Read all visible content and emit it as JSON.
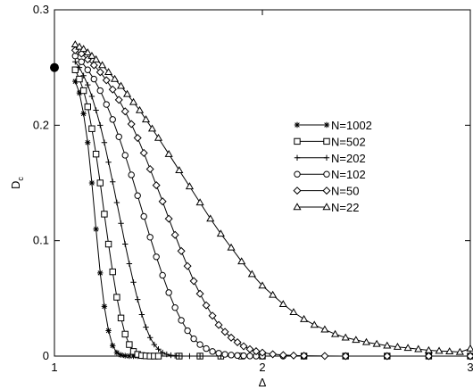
{
  "chart_data": {
    "type": "line",
    "xlabel": "Δ",
    "ylabel": "D",
    "ylabel_sub": "c",
    "xlim": [
      1,
      3
    ],
    "ylim": [
      0,
      0.3
    ],
    "x_ticks": [
      1,
      2,
      3
    ],
    "x_tick_labels": [
      "1",
      "2",
      "3"
    ],
    "y_ticks": [
      0,
      0.1,
      0.2,
      0.3
    ],
    "y_tick_labels": [
      "0",
      "0.1",
      "0.2",
      "0.3"
    ],
    "grid": false,
    "legend_position": "right-center",
    "line_color": "#000000",
    "point_marker": {
      "x": 1.0,
      "y": 0.25,
      "style": "filled-circle"
    },
    "series": [
      {
        "name": "N=1002",
        "marker": "asterisk",
        "x": [
          1.1,
          1.12,
          1.14,
          1.16,
          1.18,
          1.2,
          1.22,
          1.24,
          1.26,
          1.28,
          1.3,
          1.32,
          1.34,
          1.36,
          1.38,
          1.4,
          1.42,
          1.44,
          1.5,
          1.6,
          1.7,
          1.8,
          1.9,
          2.0,
          2.2,
          2.4,
          2.6,
          2.8,
          3.0
        ],
        "y": [
          0.238,
          0.228,
          0.21,
          0.185,
          0.15,
          0.11,
          0.072,
          0.043,
          0.022,
          0.009,
          0.003,
          0.001,
          0.0003,
          0,
          0,
          0,
          0,
          0,
          0,
          0,
          0,
          0,
          0,
          0,
          0,
          0,
          0,
          0,
          0
        ]
      },
      {
        "name": "N=502",
        "marker": "square",
        "x": [
          1.1,
          1.12,
          1.14,
          1.16,
          1.18,
          1.2,
          1.22,
          1.24,
          1.26,
          1.28,
          1.3,
          1.32,
          1.34,
          1.36,
          1.38,
          1.4,
          1.42,
          1.44,
          1.46,
          1.48,
          1.5,
          1.6,
          1.7,
          1.8,
          1.9,
          2.0,
          2.2,
          2.4,
          2.6,
          2.8,
          3.0
        ],
        "y": [
          0.248,
          0.24,
          0.23,
          0.216,
          0.197,
          0.175,
          0.15,
          0.123,
          0.097,
          0.073,
          0.051,
          0.033,
          0.019,
          0.01,
          0.004,
          0.0015,
          0.0005,
          0.0002,
          0,
          0,
          0,
          0,
          0,
          0,
          0,
          0,
          0,
          0,
          0,
          0,
          0
        ]
      },
      {
        "name": "N=202",
        "marker": "plus",
        "x": [
          1.1,
          1.12,
          1.14,
          1.16,
          1.18,
          1.2,
          1.22,
          1.24,
          1.26,
          1.28,
          1.3,
          1.32,
          1.34,
          1.36,
          1.38,
          1.4,
          1.42,
          1.44,
          1.46,
          1.48,
          1.5,
          1.52,
          1.54,
          1.56,
          1.58,
          1.6,
          1.65,
          1.7,
          1.8,
          1.9,
          2.0,
          2.2,
          2.4,
          2.6,
          2.8,
          3.0
        ],
        "y": [
          0.255,
          0.25,
          0.243,
          0.235,
          0.225,
          0.213,
          0.2,
          0.185,
          0.168,
          0.151,
          0.133,
          0.115,
          0.097,
          0.08,
          0.064,
          0.049,
          0.036,
          0.025,
          0.016,
          0.01,
          0.006,
          0.003,
          0.0015,
          0.0007,
          0.0003,
          0.0001,
          0,
          0,
          0,
          0,
          0,
          0,
          0,
          0,
          0,
          0
        ]
      },
      {
        "name": "N=102",
        "marker": "circle",
        "x": [
          1.1,
          1.13,
          1.16,
          1.19,
          1.22,
          1.25,
          1.28,
          1.31,
          1.34,
          1.37,
          1.4,
          1.43,
          1.46,
          1.49,
          1.52,
          1.55,
          1.58,
          1.61,
          1.64,
          1.67,
          1.7,
          1.73,
          1.76,
          1.79,
          1.82,
          1.85,
          1.88,
          1.91,
          1.94,
          1.97,
          2.0,
          2.1,
          2.2,
          2.4,
          2.6,
          2.8,
          3.0
        ],
        "y": [
          0.26,
          0.255,
          0.248,
          0.24,
          0.23,
          0.218,
          0.205,
          0.19,
          0.174,
          0.157,
          0.139,
          0.121,
          0.103,
          0.086,
          0.07,
          0.055,
          0.042,
          0.031,
          0.022,
          0.015,
          0.01,
          0.0065,
          0.004,
          0.0025,
          0.0015,
          0.0009,
          0.0005,
          0.0003,
          0.0001,
          0,
          0,
          0,
          0,
          0,
          0,
          0,
          0
        ]
      },
      {
        "name": "N=50",
        "marker": "diamond",
        "x": [
          1.1,
          1.13,
          1.16,
          1.19,
          1.22,
          1.25,
          1.28,
          1.31,
          1.34,
          1.37,
          1.4,
          1.43,
          1.46,
          1.49,
          1.52,
          1.55,
          1.58,
          1.61,
          1.64,
          1.67,
          1.7,
          1.73,
          1.76,
          1.79,
          1.82,
          1.85,
          1.88,
          1.91,
          1.94,
          1.97,
          2.0,
          2.05,
          2.1,
          2.15,
          2.2,
          2.3,
          2.4,
          2.6,
          2.8,
          3.0
        ],
        "y": [
          0.265,
          0.262,
          0.257,
          0.252,
          0.246,
          0.239,
          0.231,
          0.222,
          0.212,
          0.201,
          0.189,
          0.176,
          0.162,
          0.148,
          0.134,
          0.119,
          0.105,
          0.091,
          0.078,
          0.065,
          0.054,
          0.044,
          0.035,
          0.027,
          0.021,
          0.016,
          0.012,
          0.0085,
          0.006,
          0.0042,
          0.003,
          0.0016,
          0.0009,
          0.0005,
          0.0003,
          0.0001,
          0,
          0,
          0,
          0
        ]
      },
      {
        "name": "N=22",
        "marker": "triangle",
        "x": [
          1.1,
          1.12,
          1.14,
          1.16,
          1.18,
          1.2,
          1.23,
          1.26,
          1.29,
          1.32,
          1.35,
          1.38,
          1.41,
          1.44,
          1.47,
          1.5,
          1.55,
          1.6,
          1.65,
          1.7,
          1.75,
          1.8,
          1.85,
          1.9,
          1.95,
          2.0,
          2.05,
          2.1,
          2.15,
          2.2,
          2.25,
          2.3,
          2.35,
          2.4,
          2.45,
          2.5,
          2.55,
          2.6,
          2.65,
          2.7,
          2.75,
          2.8,
          2.85,
          2.9,
          2.95,
          3.0
        ],
        "y": [
          0.27,
          0.268,
          0.266,
          0.263,
          0.26,
          0.257,
          0.252,
          0.246,
          0.24,
          0.234,
          0.227,
          0.22,
          0.213,
          0.205,
          0.197,
          0.189,
          0.175,
          0.161,
          0.147,
          0.133,
          0.119,
          0.106,
          0.094,
          0.082,
          0.071,
          0.061,
          0.053,
          0.045,
          0.038,
          0.032,
          0.027,
          0.023,
          0.019,
          0.016,
          0.014,
          0.012,
          0.0105,
          0.009,
          0.008,
          0.007,
          0.006,
          0.005,
          0.0045,
          0.004,
          0.0035,
          0.0065
        ]
      }
    ]
  }
}
